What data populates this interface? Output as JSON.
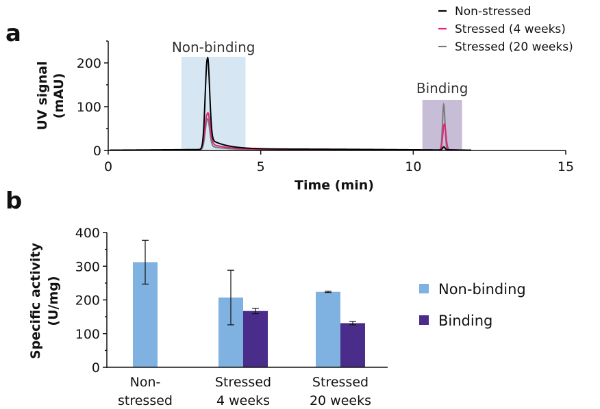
{
  "panels": {
    "a": "a",
    "b": "b"
  },
  "chart_data": [
    {
      "type": "line",
      "panel": "a",
      "xlabel": "Time (min)",
      "ylabel": [
        "UV signal",
        "(mAU)"
      ],
      "xlim": [
        0,
        15
      ],
      "ylim": [
        0,
        250
      ],
      "xticks": [
        0,
        5,
        10,
        15
      ],
      "yticks": [
        0,
        100,
        200
      ],
      "regions": [
        {
          "label": "Non-binding",
          "x": [
            2.4,
            4.5
          ],
          "color": "#d6e6f2"
        },
        {
          "label": "Binding",
          "x": [
            10.3,
            11.6
          ],
          "color": "#c7bdd6"
        }
      ],
      "legend": {
        "position": "top-right"
      },
      "series": [
        {
          "name": "Non-stressed",
          "color": "#000000",
          "peaks": [
            {
              "x": 3.25,
              "y": 207,
              "w": 0.07,
              "tail": 28,
              "tau": 0.55
            },
            {
              "x": 11.0,
              "y": 7,
              "w": 0.04,
              "tail": 1,
              "tau": 0.25
            }
          ],
          "baseline": 3
        },
        {
          "name": "Stressed (4 weeks)",
          "color": "#e0267a",
          "peaks": [
            {
              "x": 3.25,
              "y": 82,
              "w": 0.08,
              "tail": 16,
              "tau": 0.6
            },
            {
              "x": 11.02,
              "y": 60,
              "w": 0.05,
              "tail": 2,
              "tau": 0.25
            }
          ],
          "baseline": 2
        },
        {
          "name": "Stressed (20 weeks)",
          "color": "#7a7a7a",
          "peaks": [
            {
              "x": 3.25,
              "y": 70,
              "w": 0.07,
              "tail": 10,
              "tau": 0.5
            },
            {
              "x": 11.0,
              "y": 104,
              "w": 0.04,
              "tail": 2,
              "tau": 0.2
            }
          ],
          "baseline": 2
        }
      ]
    },
    {
      "type": "bar",
      "panel": "b",
      "ylabel": [
        "Specific activity",
        "(U/mg)"
      ],
      "ylim": [
        0,
        400
      ],
      "yticks": [
        0,
        100,
        200,
        300,
        400
      ],
      "categories": [
        [
          "Non-",
          "stressed"
        ],
        [
          "Stressed",
          "4 weeks"
        ],
        [
          "Stressed",
          "20 weeks"
        ]
      ],
      "legend": {
        "position": "right"
      },
      "series": [
        {
          "name": "Non-binding",
          "color": "#7fb2e0",
          "values": [
            312,
            207,
            224
          ],
          "errors": [
            65,
            81,
            2
          ]
        },
        {
          "name": "Binding",
          "color": "#4a2d8b",
          "values": [
            null,
            167,
            131
          ],
          "errors": [
            null,
            8,
            5
          ]
        }
      ]
    }
  ]
}
